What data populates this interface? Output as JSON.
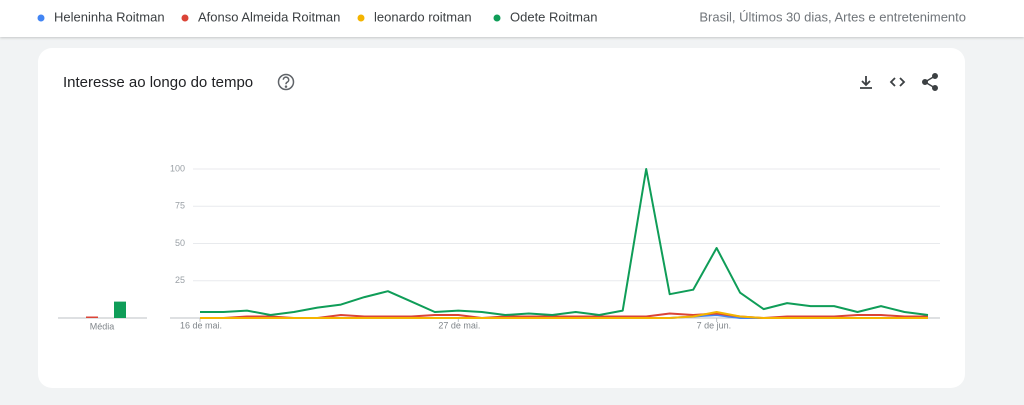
{
  "filters": "Brasil, Últimos 30 dias, Artes e entretenimento",
  "chart_data": {
    "type": "line",
    "title": "Interesse ao longo do tempo",
    "categories": [
      "16 de mai.",
      null,
      null,
      null,
      null,
      null,
      null,
      null,
      null,
      null,
      null,
      "27 de mai.",
      null,
      null,
      null,
      null,
      null,
      null,
      null,
      null,
      null,
      null,
      "7 de jun.",
      null,
      null,
      null,
      null,
      null,
      null,
      null,
      null,
      null
    ],
    "series": [
      {
        "name": "Heleninha Roitman",
        "color": "#4285f4",
        "values": [
          0,
          0,
          0,
          0,
          0,
          0,
          0,
          0,
          0,
          0,
          0,
          0,
          0,
          0,
          0,
          0,
          0,
          0,
          0,
          0,
          0,
          1,
          2,
          0,
          0,
          0,
          0,
          0,
          0,
          0,
          0,
          0
        ]
      },
      {
        "name": "Afonso Almeida Roitman",
        "color": "#db4437",
        "values": [
          0,
          0,
          1,
          1,
          0,
          0,
          2,
          1,
          1,
          1,
          2,
          2,
          0,
          1,
          1,
          1,
          1,
          1,
          1,
          1,
          3,
          2,
          3,
          1,
          0,
          1,
          1,
          1,
          2,
          2,
          1,
          1
        ]
      },
      {
        "name": "leonardo roitman",
        "color": "#f4b400",
        "values": [
          0,
          0,
          0,
          0,
          0,
          0,
          0,
          0,
          0,
          0,
          0,
          0,
          0,
          0,
          0,
          0,
          0,
          0,
          0,
          0,
          0,
          1,
          4,
          1,
          0,
          0,
          0,
          0,
          0,
          0,
          0,
          0
        ]
      },
      {
        "name": "Odete Roitman",
        "color": "#0f9d58",
        "values": [
          4,
          4,
          5,
          2,
          4,
          7,
          9,
          14,
          18,
          11,
          4,
          5,
          4,
          2,
          3,
          2,
          4,
          2,
          5,
          100,
          16,
          19,
          47,
          17,
          6,
          10,
          8,
          8,
          4,
          8,
          4,
          2
        ]
      }
    ],
    "averages": {
      "label": "Média",
      "values": [
        0,
        1,
        0,
        11
      ]
    },
    "ylim": [
      0,
      100
    ],
    "yticks": [
      25,
      50,
      75,
      100
    ],
    "grid": true
  }
}
